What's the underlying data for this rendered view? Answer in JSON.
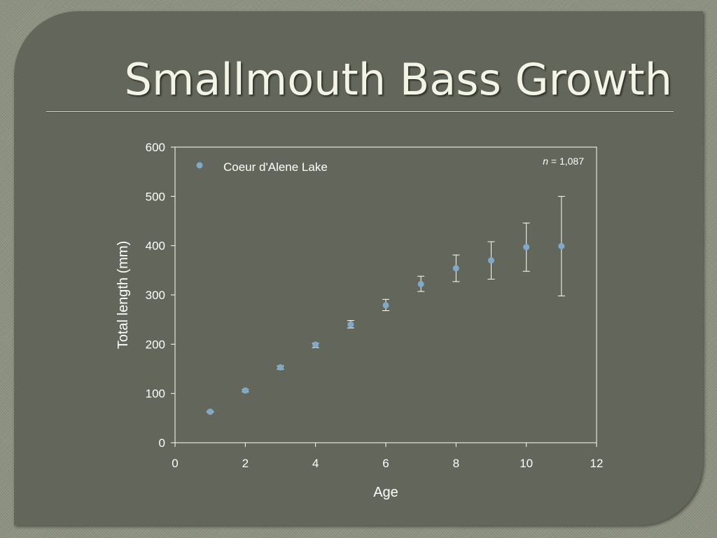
{
  "slide": {
    "title": "Smallmouth Bass Growth"
  },
  "colors": {
    "panel": "#63665a",
    "marker": "#7fa9c8",
    "axis": "#ffffff",
    "error_bar": "#ffffff"
  },
  "chart_data": {
    "type": "scatter",
    "title": "",
    "xlabel": "Age",
    "ylabel": "Total length (mm)",
    "xlim": [
      0,
      12
    ],
    "ylim": [
      0,
      600
    ],
    "xticks": [
      0,
      2,
      4,
      6,
      8,
      10,
      12
    ],
    "yticks": [
      0,
      100,
      200,
      300,
      400,
      500,
      600
    ],
    "grid": false,
    "legend_position": "top-left",
    "annotation": {
      "italic": "n",
      "rest": " = 1,087"
    },
    "series": [
      {
        "name": "Coeur d'Alene Lake",
        "marker_color": "#7fa9c8",
        "x": [
          1,
          2,
          3,
          4,
          5,
          6,
          7,
          8,
          9,
          10,
          11
        ],
        "y": [
          63,
          106,
          153,
          199,
          240,
          279,
          322,
          354,
          370,
          397,
          399
        ],
        "err_low": [
          62,
          103,
          149,
          193,
          233,
          268,
          307,
          327,
          332,
          348,
          298
        ],
        "err_high": [
          64,
          108,
          156,
          202,
          248,
          291,
          338,
          381,
          408,
          446,
          500
        ]
      }
    ]
  }
}
